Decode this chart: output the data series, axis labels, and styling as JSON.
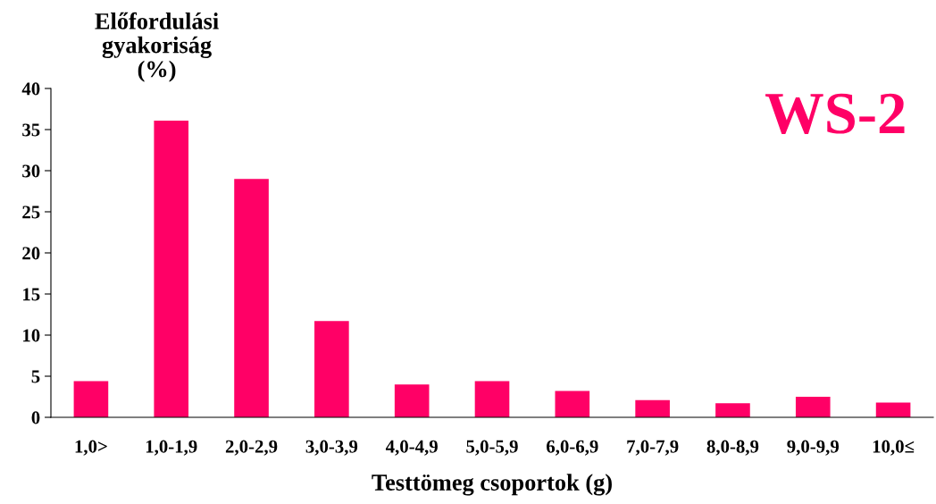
{
  "chart_data": {
    "type": "bar",
    "title": "WS-2",
    "ylabel": "Előfordulási\ngyakoriság\n(%)",
    "xlabel": "Testtömeg csoportok (g)",
    "categories": [
      "1,0>",
      "1,0-1,9",
      "2,0-2,9",
      "3,0-3,9",
      "4,0-4,9",
      "5,0-5,9",
      "6,0-6,9",
      "7,0-7,9",
      "8,0-8,9",
      "9,0-9,9",
      "10,0≤"
    ],
    "values": [
      4.4,
      36.1,
      29.0,
      11.7,
      4.0,
      4.4,
      3.2,
      2.1,
      1.7,
      2.5,
      1.8
    ],
    "color": "#ff0066",
    "ylim": [
      0,
      40
    ],
    "yticks": [
      0,
      5,
      10,
      15,
      20,
      25,
      30,
      35,
      40
    ],
    "grid": false
  }
}
